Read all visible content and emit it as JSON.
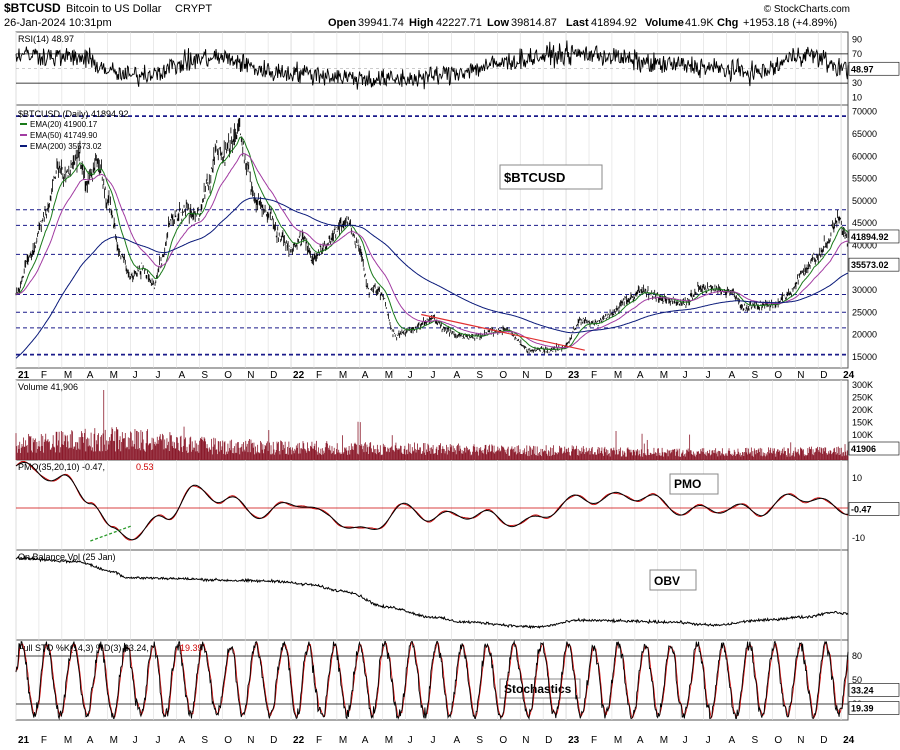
{
  "header": {
    "symbol": "$BTCUSD",
    "name": "Bitcoin to US Dollar",
    "exchange": "CRYPT",
    "datetime": "26-Jan-2024 10:31pm",
    "open_label": "Open",
    "open": "39941.74",
    "high_label": "High",
    "high": "42227.71",
    "low_label": "Low",
    "low": "39814.87",
    "last_label": "Last",
    "last": "41894.92",
    "volume_label": "Volume",
    "volume": "41.9K",
    "chg_label": "Chg",
    "chg": "+1953.18 (+4.89%)",
    "brand": "© StockCharts.com"
  },
  "colors": {
    "price": "#000000",
    "ema20": "#1a7a1a",
    "ema50": "#a23ca2",
    "ema200": "#0a1a7a",
    "level": "#1a1a8a",
    "volume": "#8b1a2b",
    "signal": "#cc0000",
    "rsi_fill": "#2850b0",
    "trend_red": "#e03030",
    "trend_green": "#2a9a2a",
    "grid": "#dddddd"
  },
  "x_axis": {
    "labels": [
      "21",
      "F",
      "M",
      "A",
      "M",
      "J",
      "J",
      "A",
      "S",
      "O",
      "N",
      "D",
      "22",
      "F",
      "M",
      "A",
      "M",
      "J",
      "J",
      "A",
      "S",
      "O",
      "N",
      "D",
      "23",
      "F",
      "M",
      "A",
      "M",
      "J",
      "J",
      "A",
      "S",
      "O",
      "N",
      "D",
      "24"
    ]
  },
  "annotations": {
    "price": "$BTCUSD",
    "pmo": "PMO",
    "obv": "OBV",
    "stoch": "Stochastics"
  },
  "panels": {
    "rsi": {
      "title": "RSI(14) 48.97",
      "ticks": [
        "90",
        "70",
        "50",
        "30",
        "10"
      ],
      "value_label": "48.97",
      "levels": [
        70,
        30
      ]
    },
    "price": {
      "title": "$BTCUSD (Daily) 41894.92",
      "legend": [
        "EMA(20) 41900.17",
        "EMA(50) 41749.90",
        "EMA(200) 35573.02"
      ],
      "ticks": [
        "70000",
        "65000",
        "60000",
        "55000",
        "50000",
        "45000",
        "40000",
        "35000",
        "30000",
        "25000",
        "20000",
        "15000"
      ],
      "ylim": [
        12500,
        71500
      ],
      "levels": [
        69000,
        48000,
        44500,
        38000,
        29000,
        25000,
        21500,
        15500
      ],
      "last_label": "41894.92",
      "ema200_label": "35573.02"
    },
    "volume": {
      "title": "Volume 41,906",
      "ticks": [
        "300K",
        "250K",
        "200K",
        "150K",
        "100K",
        "50K"
      ],
      "last_label": "41906"
    },
    "pmo": {
      "title_main": "PMO(35,20,10) -0.47,",
      "title_signal": "0.53",
      "ticks": [
        "10",
        "0",
        "-10"
      ],
      "last_label": "-0.47"
    },
    "obv": {
      "title": "On Balance Vol (25 Jan)"
    },
    "stoch": {
      "title_main": "Full STO %K(14,3) %D(3) 33.24,",
      "title_signal": "19.39",
      "ticks": [
        "80",
        "50",
        "20"
      ],
      "k_label": "33.24",
      "d_label": "19.39",
      "levels": [
        80,
        20
      ]
    }
  },
  "chart_data": [
    {
      "type": "line",
      "title": "$BTCUSD (Daily) 41894.92",
      "x": [
        "2021-01",
        "2021-02",
        "2021-03",
        "2021-04",
        "2021-05",
        "2021-06",
        "2021-07",
        "2021-08",
        "2021-09",
        "2021-10",
        "2021-11",
        "2021-12",
        "2022-01",
        "2022-02",
        "2022-03",
        "2022-04",
        "2022-05",
        "2022-06",
        "2022-07",
        "2022-08",
        "2022-09",
        "2022-10",
        "2022-11",
        "2022-12",
        "2023-01",
        "2023-02",
        "2023-03",
        "2023-04",
        "2023-05",
        "2023-06",
        "2023-07",
        "2023-08",
        "2023-09",
        "2023-10",
        "2023-11",
        "2023-12",
        "2024-01"
      ],
      "series": [
        {
          "name": "$BTCUSD",
          "values": [
            29000,
            45000,
            57000,
            58000,
            46000,
            35000,
            33000,
            47000,
            45000,
            60000,
            60000,
            47000,
            40000,
            42000,
            44000,
            42000,
            31000,
            20000,
            22000,
            23000,
            19500,
            20000,
            16500,
            16700,
            23000,
            23500,
            27500,
            29500,
            27500,
            30500,
            29500,
            26000,
            26500,
            34000,
            37500,
            42000,
            41894.92
          ]
        },
        {
          "name": "EMA(20) 41900.17",
          "values": [
            25000,
            40000,
            53000,
            57000,
            50000,
            37000,
            34000,
            43000,
            46000,
            56000,
            61000,
            50000,
            43000,
            41000,
            42000,
            43000,
            34000,
            23000,
            21500,
            23000,
            20500,
            19800,
            17500,
            16800,
            20500,
            23000,
            25500,
            28500,
            28000,
            29000,
            29800,
            27500,
            26300,
            31000,
            36000,
            41500,
            41900.17
          ]
        },
        {
          "name": "EMA(50) 41749.90",
          "values": [
            21000,
            33000,
            47000,
            54000,
            53000,
            42000,
            37000,
            39000,
            45000,
            50000,
            57000,
            54000,
            47000,
            42500,
            41500,
            42000,
            38000,
            28000,
            23000,
            22500,
            21500,
            20300,
            19000,
            17500,
            19000,
            21500,
            24000,
            27000,
            28000,
            28300,
            29300,
            28500,
            27300,
            29300,
            34000,
            39500,
            41749.9
          ]
        },
        {
          "name": "EMA(200) 35573.02",
          "values": [
            14500,
            20500,
            28000,
            36000,
            42000,
            43000,
            42000,
            42500,
            44000,
            46000,
            49000,
            49500,
            47500,
            45000,
            43500,
            43000,
            41000,
            36500,
            32000,
            29000,
            26500,
            24500,
            22500,
            21000,
            20000,
            20500,
            21500,
            23000,
            24500,
            25800,
            26800,
            27500,
            27800,
            28500,
            30500,
            33000,
            35573.02
          ]
        }
      ],
      "xlabel": "",
      "ylabel": ""
    },
    {
      "type": "line",
      "title": "RSI(14) 48.97",
      "x": [
        "2021-01",
        "2021-04",
        "2021-07",
        "2021-10",
        "2022-01",
        "2022-04",
        "2022-07",
        "2022-10",
        "2023-01",
        "2023-04",
        "2023-07",
        "2023-10",
        "2024-01"
      ],
      "series": [
        {
          "name": "RSI(14)",
          "values": [
            74,
            55,
            45,
            68,
            35,
            48,
            40,
            45,
            80,
            55,
            45,
            75,
            48.97
          ]
        }
      ],
      "ylim": [
        0,
        100
      ]
    },
    {
      "type": "bar",
      "title": "Volume 41,906",
      "categories": [
        "2021-Q1",
        "2021-Q2",
        "2021-Q3",
        "2021-Q4",
        "2022-Q1",
        "2022-Q2",
        "2022-Q3",
        "2022-Q4",
        "2023-Q1",
        "2023-Q2",
        "2023-Q3",
        "2023-Q4",
        "2024-Q1"
      ],
      "series": [
        {
          "name": "Volume",
          "values": [
            110000,
            120000,
            70000,
            65000,
            60000,
            70000,
            65000,
            75000,
            60000,
            50000,
            40000,
            60000,
            50000
          ]
        }
      ],
      "ylim": [
        0,
        300000
      ]
    },
    {
      "type": "line",
      "title": "PMO(35,20,10) -0.47, 0.53",
      "x": [
        "2021-01",
        "2021-03",
        "2021-05",
        "2021-07",
        "2021-09",
        "2021-11",
        "2022-01",
        "2022-03",
        "2022-05",
        "2022-07",
        "2022-09",
        "2022-11",
        "2023-01",
        "2023-03",
        "2023-05",
        "2023-07",
        "2023-09",
        "2023-11",
        "2024-01"
      ],
      "series": [
        {
          "name": "PMO",
          "values": [
            14,
            10,
            4,
            -7,
            2,
            4,
            -3,
            0.5,
            -6,
            -2,
            -1,
            -4,
            4,
            3,
            -1,
            0,
            -2,
            3,
            -0.47
          ]
        },
        {
          "name": "Signal",
          "values": [
            12,
            10,
            5,
            -5,
            1,
            4,
            -2,
            0,
            -5,
            -2,
            -1,
            -3,
            3,
            3,
            0,
            0,
            -1,
            3,
            0.53
          ]
        }
      ],
      "ylim": [
        -12,
        16
      ]
    },
    {
      "type": "line",
      "title": "On Balance Vol (25 Jan)",
      "x": [
        "2021-01",
        "2021-04",
        "2021-07",
        "2021-10",
        "2022-01",
        "2022-04",
        "2022-07",
        "2022-10",
        "2023-01",
        "2023-04",
        "2023-07",
        "2023-10",
        "2024-01"
      ],
      "series": [
        {
          "name": "OBV",
          "values": [
            100,
            98,
            88,
            86,
            84,
            80,
            70,
            64,
            58,
            63,
            59,
            63,
            67
          ]
        }
      ]
    },
    {
      "type": "line",
      "title": "Full STO %K(14,3) %D(3) 33.24, 19.39",
      "x": [
        "2023-10",
        "2023-11",
        "2023-12",
        "2024-01"
      ],
      "series": [
        {
          "name": "%K",
          "values": [
            85,
            60,
            82,
            33.24
          ]
        },
        {
          "name": "%D",
          "values": [
            80,
            65,
            78,
            19.39
          ]
        }
      ],
      "ylim": [
        0,
        100
      ]
    }
  ]
}
